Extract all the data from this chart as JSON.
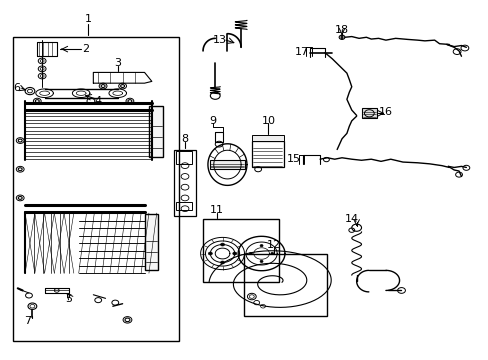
{
  "background_color": "#ffffff",
  "fig_width": 4.89,
  "fig_height": 3.6,
  "dpi": 100,
  "label_fontsize": 7.5
}
